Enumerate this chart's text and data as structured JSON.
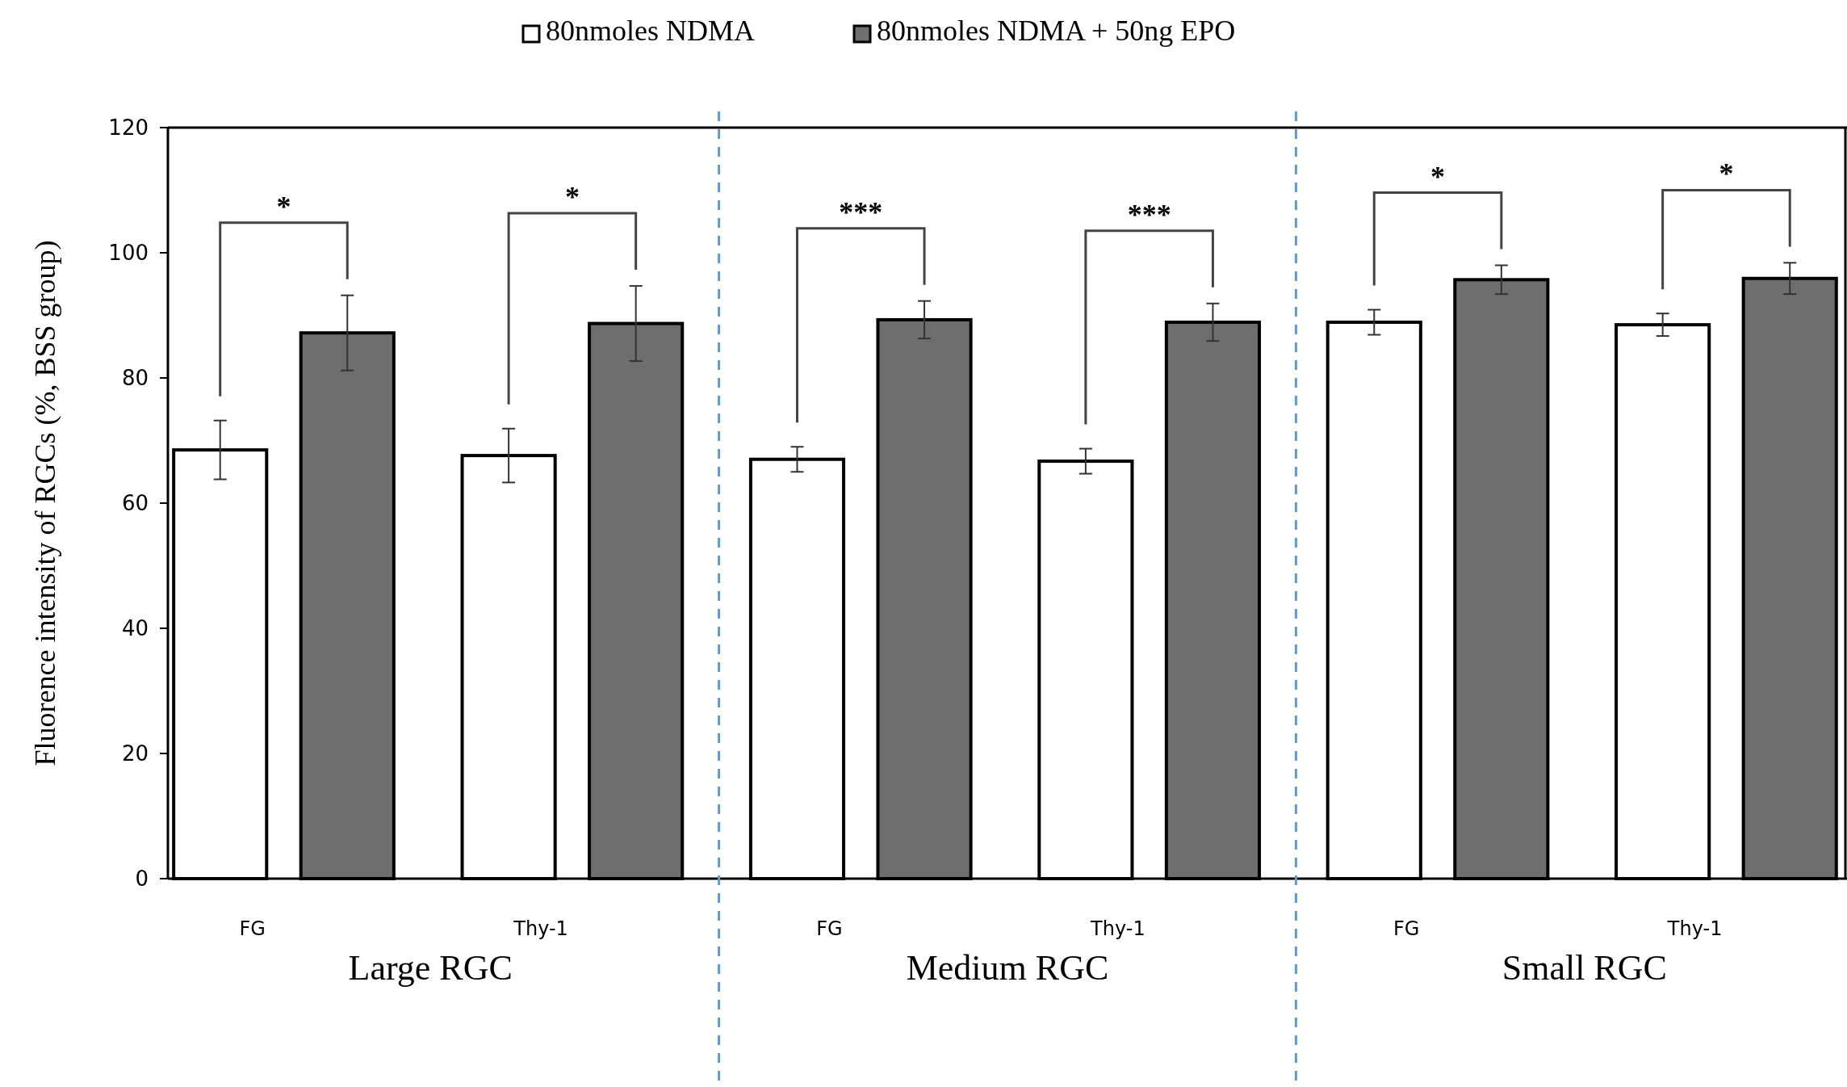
{
  "chart_data": {
    "type": "bar",
    "ylabel": "Fluorence intensity of RGCs (%, BSS group)",
    "categories": [
      "FG",
      "Thy-1",
      "FG",
      "Thy-1",
      "FG",
      "Thy-1"
    ],
    "series": [
      {
        "name": "80nmoles NDMA",
        "color": "#ffffff",
        "values": [
          68.5,
          67.6,
          67,
          66.7,
          88.9,
          88.5
        ],
        "errors": [
          4.7,
          4.3,
          2,
          2,
          2,
          1.8
        ]
      },
      {
        "name": "80nmoles NDMA + 50ng EPO",
        "color": "#6e6e6e",
        "values": [
          87.2,
          88.7,
          89.3,
          88.9,
          95.7,
          95.9
        ],
        "errors": [
          6,
          6,
          3,
          3,
          2.3,
          2.5
        ]
      }
    ],
    "ylim": [
      0,
      120
    ],
    "yticks": [
      0,
      20,
      40,
      60,
      80,
      100,
      120
    ],
    "legend": "top",
    "annotations": [
      "*",
      "*",
      "***",
      "***",
      "*",
      "*",
      "Large RGC",
      "Medium RGC",
      "Small RGC"
    ]
  }
}
